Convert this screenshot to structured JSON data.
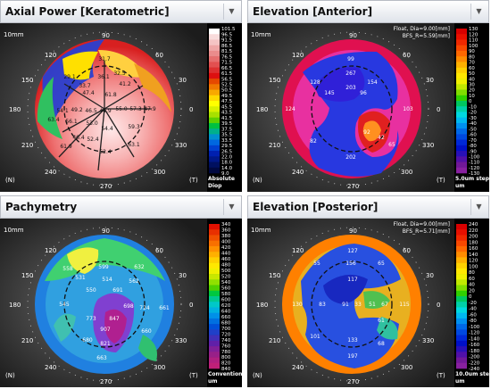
{
  "panels": [
    {
      "title": "Axial Power [Keratometric]",
      "scale_label": "10mm",
      "angles": [
        "90",
        "60",
        "30",
        "0",
        "330",
        "300",
        "270",
        "240",
        "210",
        "180",
        "150",
        "120"
      ],
      "corner_left": "(N)",
      "corner_right": "(T)",
      "info_lines": [],
      "colorbar": {
        "colors": [
          "#ffffff",
          "#f8dcdc",
          "#f4c4c4",
          "#eea6a6",
          "#ea8c8c",
          "#e66e6e",
          "#e25050",
          "#dd3030",
          "#dd1010",
          "#e64800",
          "#f07800",
          "#f8a800",
          "#ffd800",
          "#ffff00",
          "#d8f000",
          "#a8e000",
          "#60d000",
          "#00c040",
          "#00b08c",
          "#0090d0",
          "#0068e0",
          "#0040d0",
          "#0020b0",
          "#001888",
          "#001060",
          "#000840"
        ],
        "labels": [
          "101.5",
          "96.5",
          "91.5",
          "86.5",
          "81.5",
          "76.5",
          "71.5",
          "66.5",
          "61.5",
          "56.5",
          "52.5",
          "50.5",
          "49.5",
          "47.5",
          "45.5",
          "43.5",
          "41.5",
          "39.5",
          "37.5",
          "35.5",
          "33.5",
          "29.5",
          "26.5",
          "22.0",
          "18.0",
          "14.0",
          "9.0"
        ],
        "units": [
          "Absolute",
          "Diop"
        ]
      },
      "map_values": [
        "31.7",
        "29.1",
        "32.5",
        "33.7",
        "36.1",
        "41.2",
        "47.4",
        "61.8",
        "54.1",
        "49.2",
        "46.5",
        "44.9",
        "55.0",
        "57.3",
        "47.9",
        "63.4",
        "56.1",
        "53.0",
        "54.4",
        "59.3",
        "46.4",
        "52.4",
        "52.4",
        "61.9",
        "63.1"
      ]
    },
    {
      "title": "Elevation [Anterior]",
      "scale_label": "10mm",
      "angles": [
        "90",
        "60",
        "30",
        "0",
        "330",
        "300",
        "270",
        "240",
        "210",
        "180",
        "150",
        "120"
      ],
      "corner_left": "(N)",
      "corner_right": "(T)",
      "info_lines": [
        "Float, Dia=9.00[mm]",
        "BFS_R=5.59[mm]"
      ],
      "colorbar": {
        "colors": [
          "#d80000",
          "#e81000",
          "#f02800",
          "#f84800",
          "#ff6800",
          "#ff8c00",
          "#ffb000",
          "#ffd000",
          "#ffe800",
          "#f0f000",
          "#c0e800",
          "#80dc00",
          "#30d000",
          "#00c860",
          "#00d0a8",
          "#00d8e0",
          "#00b8f0",
          "#0090f0",
          "#0068e8",
          "#0048e0",
          "#0028d8",
          "#0010c8",
          "#2810b8",
          "#5010a8",
          "#701898",
          "#8820a0"
        ],
        "labels": [
          "130",
          "120",
          "110",
          "100",
          "90",
          "80",
          "70",
          "60",
          "50",
          "40",
          "30",
          "20",
          "10",
          "0",
          "-10",
          "-20",
          "-30",
          "-40",
          "-50",
          "-60",
          "-70",
          "-80",
          "-90",
          "-100",
          "-110",
          "-120",
          "-130"
        ],
        "units": [
          "5.0um step",
          "um"
        ]
      },
      "map_values": [
        "99",
        "267",
        "128",
        "203",
        "154",
        "145",
        "96",
        "124",
        "103",
        "82",
        "92",
        "42",
        "65",
        "202"
      ]
    },
    {
      "title": "Pachymetry",
      "scale_label": "10mm",
      "angles": [
        "90",
        "60",
        "30",
        "0",
        "330",
        "300",
        "270",
        "240",
        "210",
        "180",
        "150",
        "120"
      ],
      "corner_left": "(N)",
      "corner_right": "(T)",
      "info_lines": [],
      "colorbar": {
        "colors": [
          "#e01000",
          "#e83000",
          "#f05000",
          "#f87000",
          "#ff9000",
          "#ffb000",
          "#ffd000",
          "#ffe800",
          "#f0f000",
          "#c8e800",
          "#90e000",
          "#50d000",
          "#00c840",
          "#00c890",
          "#00c8c8",
          "#00b0e0",
          "#0090e8",
          "#0070e0",
          "#0050d8",
          "#2040c8",
          "#4030b8",
          "#6020a8",
          "#802098",
          "#982088",
          "#b02080",
          "#c02078"
        ],
        "labels": [
          "340",
          "360",
          "380",
          "400",
          "420",
          "440",
          "460",
          "480",
          "500",
          "520",
          "540",
          "560",
          "580",
          "600",
          "620",
          "640",
          "660",
          "680",
          "700",
          "720",
          "740",
          "760",
          "780",
          "800",
          "820",
          "840"
        ],
        "units": [
          "Conventional",
          "um"
        ]
      },
      "map_values": [
        "558",
        "599",
        "632",
        "531",
        "514",
        "562",
        "550",
        "691",
        "545",
        "698",
        "724",
        "661",
        "773",
        "847",
        "907",
        "680",
        "660",
        "821",
        "663"
      ]
    },
    {
      "title": "Elevation [Posterior]",
      "scale_label": "10mm",
      "angles": [
        "90",
        "60",
        "30",
        "0",
        "330",
        "300",
        "270",
        "240",
        "210",
        "180",
        "150",
        "120"
      ],
      "corner_left": "(N)",
      "corner_right": "(T)",
      "info_lines": [
        "Float, Dia=9.00[mm]",
        "BFS_R=5.71[mm]"
      ],
      "colorbar": {
        "colors": [
          "#d80000",
          "#e81000",
          "#f02800",
          "#f84800",
          "#ff6800",
          "#ff8c00",
          "#ffb000",
          "#ffd000",
          "#ffe800",
          "#f0f000",
          "#c0e800",
          "#80dc00",
          "#30d000",
          "#00c860",
          "#00d0a8",
          "#00d8e0",
          "#00b8f0",
          "#0090f0",
          "#0068e8",
          "#0048e0",
          "#0028d8",
          "#0010c8",
          "#2810b8",
          "#5010a8",
          "#701898",
          "#8820a0"
        ],
        "labels": [
          "240",
          "220",
          "200",
          "180",
          "160",
          "140",
          "120",
          "100",
          "80",
          "60",
          "40",
          "20",
          "0",
          "-20",
          "-40",
          "-60",
          "-80",
          "-100",
          "-120",
          "-140",
          "-160",
          "-180",
          "-200",
          "-220",
          "-240"
        ],
        "units": [
          "10.0um step",
          "um"
        ]
      },
      "map_values": [
        "127",
        "55",
        "156",
        "65",
        "117",
        "130",
        "83",
        "91",
        "33",
        "51",
        "67",
        "115",
        "61",
        "101",
        "133",
        "68",
        "197"
      ]
    }
  ]
}
